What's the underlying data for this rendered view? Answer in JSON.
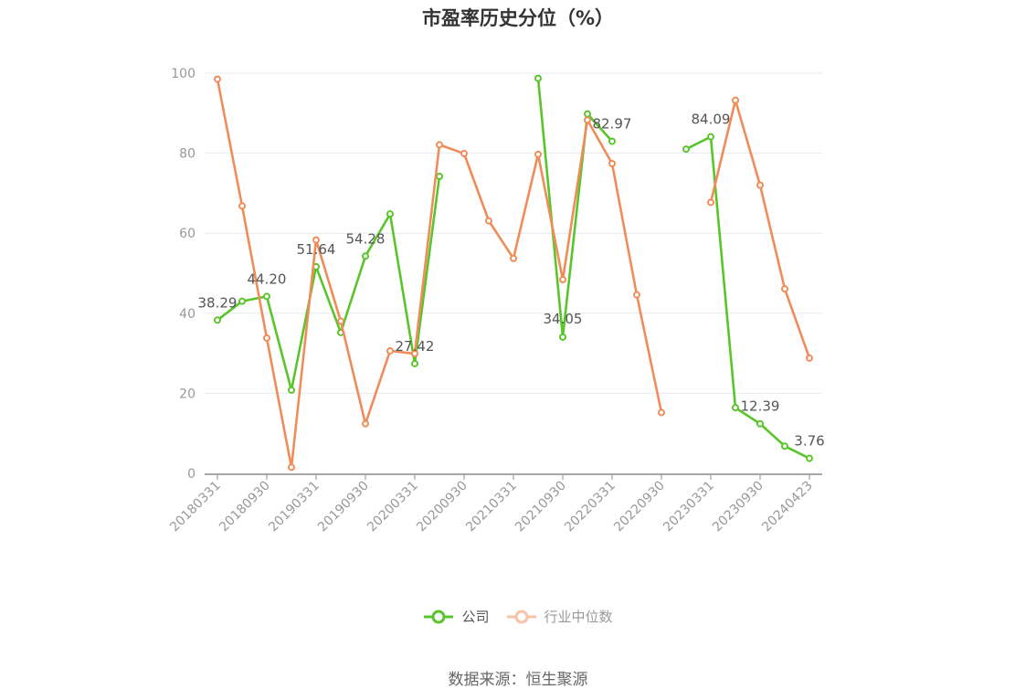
{
  "chart_data": {
    "type": "line",
    "title": "市盈率历史分位（%）",
    "source": "数据来源：恒生聚源",
    "ylim": [
      0,
      100
    ],
    "yticks": [
      0,
      20,
      40,
      60,
      80,
      100
    ],
    "grid": true,
    "legend_position": "bottom",
    "x": [
      "20180331",
      "20180630",
      "20180930",
      "20181231",
      "20190331",
      "20190630",
      "20190930",
      "20191231",
      "20200331",
      "20200630",
      "20200930",
      "20201231",
      "20210331",
      "20210630",
      "20210930",
      "20211231",
      "20220331",
      "20220630",
      "20220930",
      "20221231",
      "20230331",
      "20230630",
      "20230930",
      "20231231",
      "20240423"
    ],
    "x_tick_labels": [
      "20180331",
      "20180930",
      "20190331",
      "20190930",
      "20200331",
      "20200930",
      "20210331",
      "20210930",
      "20220331",
      "20220930",
      "20230331",
      "20230930",
      "20240423"
    ],
    "series": [
      {
        "name": "公司",
        "color": "#5ac52a",
        "values": [
          38.29,
          43.0,
          44.2,
          20.8,
          51.64,
          35.2,
          54.28,
          64.8,
          27.42,
          74.2,
          null,
          null,
          null,
          98.7,
          34.05,
          89.8,
          82.97,
          null,
          null,
          81.0,
          84.09,
          16.4,
          12.39,
          6.8,
          3.76
        ],
        "labels": {
          "0": "38.29",
          "2": "44.20",
          "4": "51.64",
          "6": "54.28",
          "8": "27.42",
          "14": "34.05",
          "16": "82.97",
          "20": "84.09",
          "22": "12.39",
          "24": "3.76"
        }
      },
      {
        "name": "行业中位数",
        "color": "#f08c5a",
        "values": [
          98.5,
          66.8,
          33.8,
          1.5,
          58.3,
          38.0,
          12.4,
          30.6,
          29.9,
          82.1,
          79.9,
          63.1,
          53.7,
          79.7,
          48.4,
          88.3,
          77.4,
          44.6,
          15.2,
          null,
          67.7,
          93.2,
          72.0,
          46.1,
          28.8
        ]
      }
    ]
  }
}
